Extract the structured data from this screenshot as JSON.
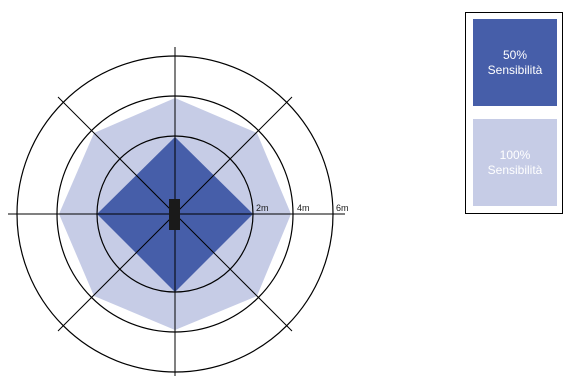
{
  "diagram": {
    "ring_labels": [
      "2m",
      "4m",
      "6m"
    ],
    "colors": {
      "sensitivity_50": "#465ea9",
      "sensitivity_100": "#c6cce6",
      "lines": "#000000",
      "sensor": "#1a1a1a"
    }
  },
  "legend": {
    "items": [
      {
        "percent": "50%",
        "label": "Sensibilità",
        "color": "#465ea9",
        "text_color": "#ffffff"
      },
      {
        "percent": "100%",
        "label": "Sensibilità",
        "color": "#c6cce6",
        "text_color": "#ffffff"
      }
    ]
  }
}
